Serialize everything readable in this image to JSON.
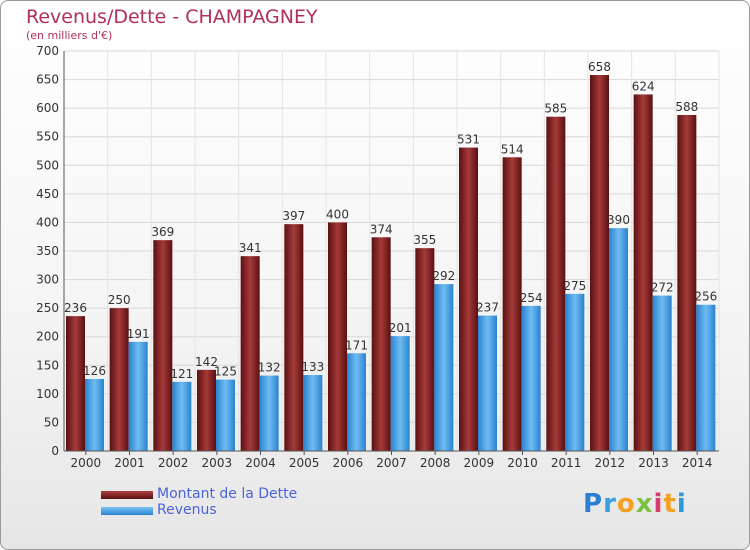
{
  "title": "Revenus/Dette - CHAMPAGNEY",
  "subtitle": "(en milliers d'€)",
  "logo": {
    "letters": [
      "P",
      "r",
      "o",
      "x",
      "i",
      "t",
      "i"
    ],
    "colors": [
      "#2b7fd1",
      "#3aa0e0",
      "#f4a020",
      "#7ac143",
      "#d63a6e",
      "#f4a020",
      "#2b9ad6"
    ]
  },
  "legend": [
    {
      "label": "Montant de la Dette",
      "color": "#7a1f1f"
    },
    {
      "label": "Revenus",
      "color": "#4aa4e8"
    }
  ],
  "chart_data": {
    "type": "bar",
    "categories": [
      "2000",
      "2001",
      "2002",
      "2003",
      "2004",
      "2005",
      "2006",
      "2007",
      "2008",
      "2009",
      "2010",
      "2011",
      "2012",
      "2013",
      "2014"
    ],
    "series": [
      {
        "name": "Montant de la Dette",
        "color": "#7a1f1f",
        "values": [
          236,
          250,
          369,
          142,
          341,
          397,
          400,
          374,
          355,
          531,
          514,
          585,
          658,
          624,
          588
        ]
      },
      {
        "name": "Revenus",
        "color": "#4aa4e8",
        "values": [
          126,
          191,
          121,
          125,
          132,
          133,
          171,
          201,
          292,
          237,
          254,
          275,
          390,
          272,
          256
        ]
      }
    ],
    "ylim": [
      0,
      700
    ],
    "yticks": [
      0,
      50,
      100,
      150,
      200,
      250,
      300,
      350,
      400,
      450,
      500,
      550,
      600,
      650,
      700
    ],
    "grid": true,
    "legend_position": "bottom-left"
  }
}
